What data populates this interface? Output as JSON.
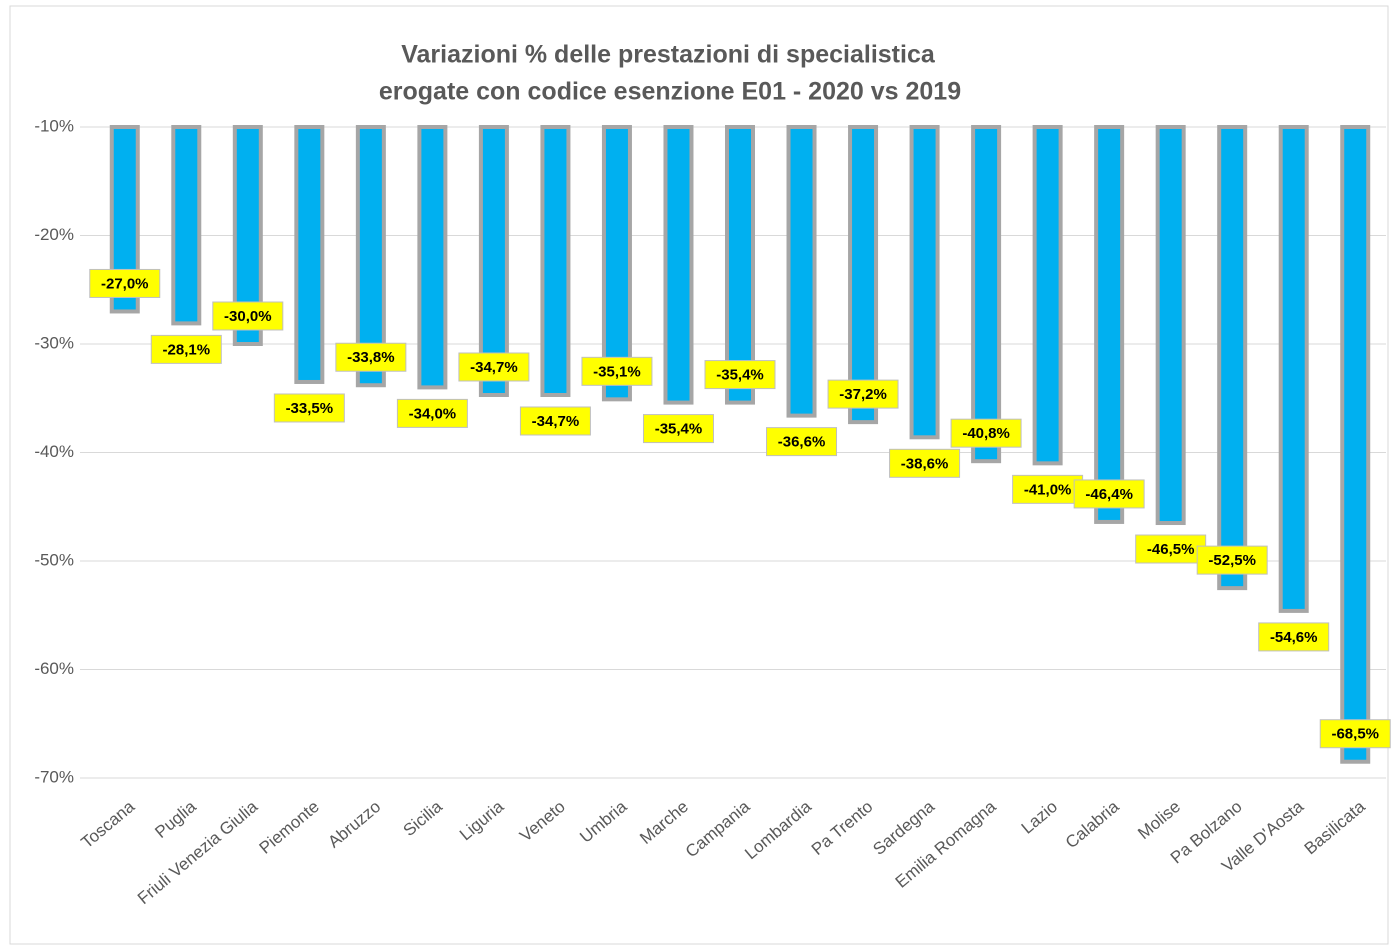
{
  "chart_data": {
    "type": "bar",
    "title": [
      "Variazioni % delle prestazioni di specialistica",
      "erogate con codice esenzione E01 - 2020 vs 2019"
    ],
    "categories": [
      "Toscana",
      "Puglia",
      "Friuli Venezia Giulia",
      "Piemonte",
      "Abruzzo",
      "Sicilia",
      "Liguria",
      "Veneto",
      "Umbria",
      "Marche",
      "Campania",
      "Lombardia",
      "Pa Trento",
      "Sardegna",
      "Emilia Romagna",
      "Lazio",
      "Calabria",
      "Molise",
      "Pa Bolzano",
      "Valle D'Aosta",
      "Basilicata"
    ],
    "values": [
      -27.0,
      -28.1,
      -30.0,
      -33.5,
      -33.8,
      -34.0,
      -34.7,
      -34.7,
      -35.1,
      -35.4,
      -35.4,
      -36.6,
      -37.2,
      -38.6,
      -40.8,
      -41.0,
      -46.4,
      -46.5,
      -52.5,
      -54.6,
      -68.5
    ],
    "value_labels": [
      "-27,0%",
      "-28,1%",
      "-30,0%",
      "-33,5%",
      "-33,8%",
      "-34,0%",
      "-34,7%",
      "-34,7%",
      "-35,1%",
      "-35,4%",
      "-35,4%",
      "-36,6%",
      "-37,2%",
      "-38,6%",
      "-40,8%",
      "-41,0%",
      "-46,4%",
      "-46,5%",
      "-52,5%",
      "-54,6%",
      "-68,5%"
    ],
    "color": "#00b0f0",
    "ylim": [
      -70,
      -10
    ],
    "yticks": [
      {
        "value": -10,
        "label": "-10%"
      },
      {
        "value": -20,
        "label": "-20%"
      },
      {
        "value": -30,
        "label": "-30%"
      },
      {
        "value": -40,
        "label": "-40%"
      },
      {
        "value": -50,
        "label": "-50%"
      },
      {
        "value": -60,
        "label": "-60%"
      },
      {
        "value": -70,
        "label": "-70%"
      }
    ],
    "grid": true
  }
}
